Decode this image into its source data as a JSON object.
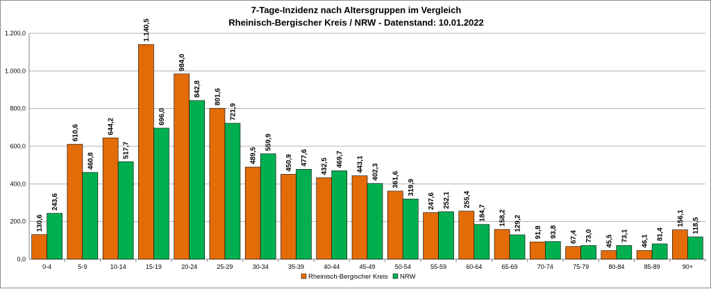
{
  "chart_data": {
    "type": "bar",
    "title": "7-Tage-Inzidenz nach Altersgruppen im Vergleich",
    "subtitle": "Rheinisch-Bergischer Kreis / NRW - Datenstand: 10.01.2022",
    "xlabel": "",
    "ylabel": "",
    "ylim": [
      0,
      1200
    ],
    "yticks": [
      0,
      200,
      400,
      600,
      800,
      1000,
      1200
    ],
    "ytick_labels": [
      "0,0",
      "200,0",
      "400,0",
      "600,0",
      "800,0",
      "1.000,0",
      "1.200,0"
    ],
    "grid": true,
    "legend_position": "bottom",
    "categories": [
      "0-4",
      "5-9",
      "10-14",
      "15-19",
      "20-24",
      "25-29",
      "30-34",
      "35-39",
      "40-44",
      "45-49",
      "50-54",
      "55-59",
      "60-64",
      "65-69",
      "70-74",
      "75-79",
      "80-84",
      "85-89",
      "90+"
    ],
    "series": [
      {
        "name": "Rheinisch-Bergischer Kreis",
        "color": "#e36c09",
        "values": [
          130.6,
          610.6,
          644.2,
          1140.5,
          984.0,
          801.6,
          489.5,
          450.9,
          432.5,
          443.1,
          361.6,
          247.6,
          255.4,
          158.2,
          91.8,
          67.4,
          45.5,
          46.1,
          156.1
        ],
        "labels": [
          "130,6",
          "610,6",
          "644,2",
          "1.140,5",
          "984,0",
          "801,6",
          "489,5",
          "450,9",
          "432,5",
          "443,1",
          "361,6",
          "247,6",
          "255,4",
          "158,2",
          "91,8",
          "67,4",
          "45,5",
          "46,1",
          "156,1"
        ]
      },
      {
        "name": "NRW",
        "color": "#00b050",
        "values": [
          243.6,
          460.8,
          517.7,
          696.0,
          842.8,
          721.9,
          559.9,
          477.6,
          469.7,
          402.3,
          319.9,
          252.1,
          184.7,
          129.2,
          93.8,
          73.0,
          73.1,
          81.4,
          118.5
        ],
        "labels": [
          "243,6",
          "460,8",
          "517,7",
          "696,0",
          "842,8",
          "721,9",
          "559,9",
          "477,6",
          "469,7",
          "402,3",
          "319,9",
          "252,1",
          "184,7",
          "129,2",
          "93,8",
          "73,0",
          "73,1",
          "81,4",
          "118,5"
        ]
      }
    ]
  }
}
